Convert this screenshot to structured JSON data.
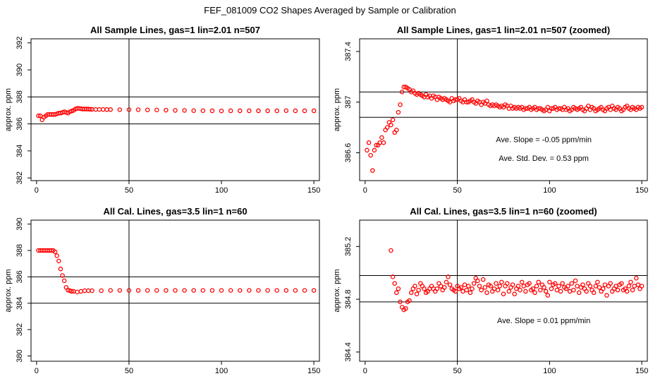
{
  "figure_title": "FEF_081009  CO2 Shapes Averaged by Sample or Calibration",
  "chart_data": [
    {
      "type": "scatter",
      "title": "All Sample Lines, gas=1 lin=2.01 n=507",
      "xlabel": "",
      "ylabel": "approx. ppm",
      "xlim": [
        -3,
        153
      ],
      "ylim": [
        381.8,
        392.3
      ],
      "xticks": [
        0,
        50,
        100,
        150
      ],
      "yticks": [
        382,
        384,
        386,
        388,
        390,
        392
      ],
      "vline": 50,
      "hlines": [
        386,
        388
      ],
      "color": "#ff0000",
      "series": [
        {
          "name": "",
          "x": [
            1,
            2,
            3,
            4,
            5,
            6,
            7,
            8,
            9,
            10,
            11,
            12,
            13,
            14,
            15,
            16,
            17,
            18,
            19,
            20,
            21,
            22,
            23,
            24,
            25,
            26,
            27,
            28,
            29,
            30,
            32,
            34,
            36,
            38,
            40,
            45,
            50,
            55,
            60,
            65,
            70,
            75,
            80,
            85,
            90,
            95,
            100,
            105,
            110,
            115,
            120,
            125,
            130,
            135,
            140,
            145,
            150
          ],
          "y": [
            386.6,
            386.6,
            386.3,
            386.5,
            386.6,
            386.7,
            386.7,
            386.7,
            386.7,
            386.7,
            386.75,
            386.8,
            386.8,
            386.85,
            386.9,
            386.85,
            386.8,
            386.9,
            386.95,
            387.0,
            387.1,
            387.15,
            387.15,
            387.12,
            387.1,
            387.1,
            387.1,
            387.1,
            387.08,
            387.08,
            387.07,
            387.07,
            387.07,
            387.06,
            387.06,
            387.05,
            387.05,
            387.05,
            387.04,
            387.03,
            387.02,
            387.0,
            387.0,
            386.98,
            386.98,
            386.97,
            386.96,
            386.97,
            386.97,
            386.97,
            386.97,
            386.97,
            386.97,
            386.98,
            386.97,
            386.97,
            386.97
          ]
        }
      ],
      "annotations": []
    },
    {
      "type": "scatter",
      "title": "All Sample Lines, gas=1 lin=2.01 n=507 (zoomed)",
      "xlabel": "",
      "ylabel": "approx. ppm",
      "xlim": [
        -3,
        153
      ],
      "ylim": [
        386.38,
        387.5
      ],
      "xticks": [
        0,
        50,
        100,
        150
      ],
      "yticks": [
        386.6,
        387.0,
        387.4
      ],
      "vline": 50,
      "hlines": [
        386.88,
        387.08
      ],
      "color": "#ff0000",
      "series": [
        {
          "name": "",
          "x": [
            1,
            2,
            3,
            4,
            5,
            6,
            7,
            8,
            9,
            10,
            11,
            12,
            13,
            14,
            15,
            16,
            17,
            18,
            19,
            20,
            21,
            22,
            23,
            24,
            25,
            26,
            27,
            28,
            29,
            30,
            31,
            32,
            33,
            34,
            35,
            36,
            37,
            38,
            39,
            40,
            41,
            42,
            43,
            44,
            45,
            46,
            47,
            48,
            49,
            50,
            51,
            52,
            53,
            54,
            55,
            56,
            57,
            58,
            59,
            60,
            61,
            62,
            63,
            64,
            65,
            66,
            67,
            68,
            69,
            70,
            71,
            72,
            73,
            74,
            75,
            76,
            77,
            78,
            79,
            80,
            81,
            82,
            83,
            84,
            85,
            86,
            87,
            88,
            89,
            90,
            91,
            92,
            93,
            94,
            95,
            96,
            97,
            98,
            99,
            100,
            101,
            102,
            103,
            104,
            105,
            106,
            107,
            108,
            109,
            110,
            111,
            112,
            113,
            114,
            115,
            116,
            117,
            118,
            119,
            120,
            121,
            122,
            123,
            124,
            125,
            126,
            127,
            128,
            129,
            130,
            131,
            132,
            133,
            134,
            135,
            136,
            137,
            138,
            139,
            140,
            141,
            142,
            143,
            144,
            145,
            146,
            147,
            148,
            149,
            150
          ],
          "y": [
            386.62,
            386.68,
            386.58,
            386.46,
            386.62,
            386.66,
            386.66,
            386.68,
            386.72,
            386.68,
            386.78,
            386.8,
            386.84,
            386.82,
            386.86,
            386.76,
            386.78,
            386.92,
            386.98,
            387.08,
            387.12,
            387.12,
            387.11,
            387.1,
            387.08,
            387.09,
            387.07,
            387.06,
            387.07,
            387.06,
            387.05,
            387.04,
            387.06,
            387.04,
            387.05,
            387.03,
            387.05,
            387.04,
            387.02,
            387.04,
            387.03,
            387.02,
            387.03,
            387.02,
            387.01,
            387.0,
            387.03,
            387.01,
            387.02,
            387.02,
            387.03,
            387.01,
            387.0,
            387.02,
            387.0,
            387.0,
            387.01,
            387.02,
            387.0,
            386.99,
            387.01,
            387.0,
            386.98,
            387.0,
            386.99,
            387.01,
            386.98,
            386.97,
            386.98,
            386.97,
            386.98,
            386.97,
            386.96,
            386.97,
            386.96,
            386.98,
            386.97,
            386.95,
            386.97,
            386.95,
            386.96,
            386.95,
            386.96,
            386.95,
            386.96,
            386.94,
            386.95,
            386.95,
            386.96,
            386.94,
            386.95,
            386.96,
            386.94,
            386.95,
            386.95,
            386.94,
            386.93,
            386.94,
            386.96,
            386.93,
            386.95,
            386.95,
            386.96,
            386.94,
            386.95,
            386.95,
            386.94,
            386.96,
            386.94,
            386.95,
            386.93,
            386.94,
            386.96,
            386.95,
            386.94,
            386.95,
            386.96,
            386.94,
            386.93,
            386.95,
            386.97,
            386.94,
            386.96,
            386.95,
            386.93,
            386.94,
            386.95,
            386.96,
            386.94,
            386.93,
            386.95,
            386.96,
            386.94,
            386.97,
            386.95,
            386.94,
            386.96,
            386.95,
            386.93,
            386.94,
            386.96,
            386.97,
            386.95,
            386.94,
            386.96,
            386.95,
            386.94,
            386.96,
            386.95,
            386.96
          ]
        }
      ],
      "annotations": [
        "Ave. Slope =  -0.05  ppm/min",
        "Ave. Std. Dev. =  0.53  ppm"
      ]
    },
    {
      "type": "scatter",
      "title": "All Cal. Lines, gas=3.5 lin=1 n=60",
      "xlabel": "",
      "ylabel": "approx. ppm",
      "xlim": [
        -3,
        153
      ],
      "ylim": [
        379.6,
        390.3
      ],
      "xticks": [
        0,
        50,
        100,
        150
      ],
      "yticks": [
        380,
        382,
        384,
        386,
        388,
        390
      ],
      "vline": 50,
      "hlines": [
        384,
        386
      ],
      "color": "#ff0000",
      "series": [
        {
          "name": "",
          "x": [
            1,
            2,
            3,
            4,
            5,
            6,
            7,
            8,
            9,
            10,
            11,
            12,
            13,
            14,
            15,
            16,
            17,
            18,
            19,
            20,
            22,
            24,
            26,
            28,
            30,
            35,
            40,
            45,
            50,
            55,
            60,
            65,
            70,
            75,
            80,
            85,
            90,
            95,
            100,
            105,
            110,
            115,
            120,
            125,
            130,
            135,
            140,
            145,
            150
          ],
          "y": [
            388.0,
            388.0,
            388.0,
            388.0,
            388.0,
            388.0,
            388.0,
            388.0,
            388.0,
            387.9,
            387.6,
            387.2,
            386.6,
            386.1,
            385.7,
            385.2,
            385.0,
            384.95,
            384.9,
            384.9,
            384.85,
            384.9,
            384.95,
            384.95,
            384.95,
            384.95,
            384.97,
            384.97,
            384.97,
            384.97,
            384.97,
            384.97,
            384.97,
            384.97,
            384.97,
            384.97,
            384.97,
            384.97,
            384.97,
            384.97,
            384.97,
            384.97,
            384.97,
            384.97,
            384.97,
            384.97,
            384.97,
            384.97,
            384.97
          ]
        }
      ],
      "annotations": []
    },
    {
      "type": "scatter",
      "title": "All Cal. Lines, gas=3.5 lin=1 n=60 (zoomed)",
      "xlabel": "",
      "ylabel": "approx. ppm",
      "xlim": [
        -3,
        153
      ],
      "ylim": [
        384.33,
        385.4
      ],
      "xticks": [
        0,
        50,
        100,
        150
      ],
      "yticks": [
        384.4,
        384.8,
        385.2
      ],
      "vline": 50,
      "hlines": [
        384.78,
        384.98
      ],
      "color": "#ff0000",
      "series": [
        {
          "name": "",
          "x": [
            14,
            15,
            16,
            17,
            18,
            19,
            20,
            21,
            22,
            23,
            24,
            25,
            26,
            27,
            28,
            29,
            30,
            31,
            32,
            33,
            34,
            35,
            36,
            37,
            38,
            39,
            40,
            41,
            42,
            43,
            44,
            45,
            46,
            47,
            48,
            49,
            50,
            51,
            52,
            53,
            54,
            55,
            56,
            57,
            58,
            59,
            60,
            61,
            62,
            63,
            64,
            65,
            66,
            67,
            68,
            69,
            70,
            71,
            72,
            73,
            74,
            75,
            76,
            77,
            78,
            79,
            80,
            81,
            82,
            83,
            84,
            85,
            86,
            87,
            88,
            89,
            90,
            91,
            92,
            93,
            94,
            95,
            96,
            97,
            98,
            99,
            100,
            101,
            102,
            103,
            104,
            105,
            106,
            107,
            108,
            109,
            110,
            111,
            112,
            113,
            114,
            115,
            116,
            117,
            118,
            119,
            120,
            121,
            122,
            123,
            124,
            125,
            126,
            127,
            128,
            129,
            130,
            131,
            132,
            133,
            134,
            135,
            136,
            137,
            138,
            139,
            140,
            141,
            142,
            143,
            144,
            145,
            146,
            147,
            148,
            149,
            150
          ],
          "y": [
            385.17,
            384.97,
            384.92,
            384.85,
            384.88,
            384.78,
            384.74,
            384.72,
            384.73,
            384.78,
            384.79,
            384.85,
            384.88,
            384.9,
            384.84,
            384.87,
            384.92,
            384.9,
            384.88,
            384.85,
            384.86,
            384.88,
            384.9,
            384.88,
            384.86,
            384.88,
            384.92,
            384.9,
            384.87,
            384.89,
            384.93,
            384.97,
            384.91,
            384.88,
            384.87,
            384.86,
            384.9,
            384.88,
            384.89,
            384.86,
            384.91,
            384.87,
            384.9,
            384.85,
            384.88,
            384.92,
            384.96,
            384.94,
            384.9,
            384.87,
            384.95,
            384.89,
            384.85,
            384.91,
            384.9,
            384.86,
            384.88,
            384.92,
            384.87,
            384.9,
            384.93,
            384.84,
            384.9,
            384.92,
            384.86,
            384.89,
            384.91,
            384.84,
            384.88,
            384.9,
            384.87,
            384.93,
            384.9,
            384.86,
            384.91,
            384.92,
            384.87,
            384.88,
            384.85,
            384.9,
            384.93,
            384.87,
            384.91,
            384.89,
            384.86,
            384.83,
            384.93,
            384.88,
            384.91,
            384.92,
            384.87,
            384.9,
            384.86,
            384.92,
            384.89,
            384.88,
            384.9,
            384.86,
            384.92,
            384.87,
            384.94,
            384.9,
            384.85,
            384.89,
            384.91,
            384.88,
            384.86,
            384.92,
            384.9,
            384.87,
            384.85,
            384.9,
            384.93,
            384.89,
            384.86,
            384.88,
            384.91,
            384.83,
            384.9,
            384.92,
            384.86,
            384.88,
            384.9,
            384.87,
            384.91,
            384.92,
            384.87,
            384.88,
            384.86,
            384.9,
            384.93,
            384.87,
            384.9,
            384.96,
            384.91,
            384.88,
            384.9
          ]
        }
      ],
      "annotations": [
        "Ave. Slope =  0.01  ppm/min"
      ]
    }
  ]
}
